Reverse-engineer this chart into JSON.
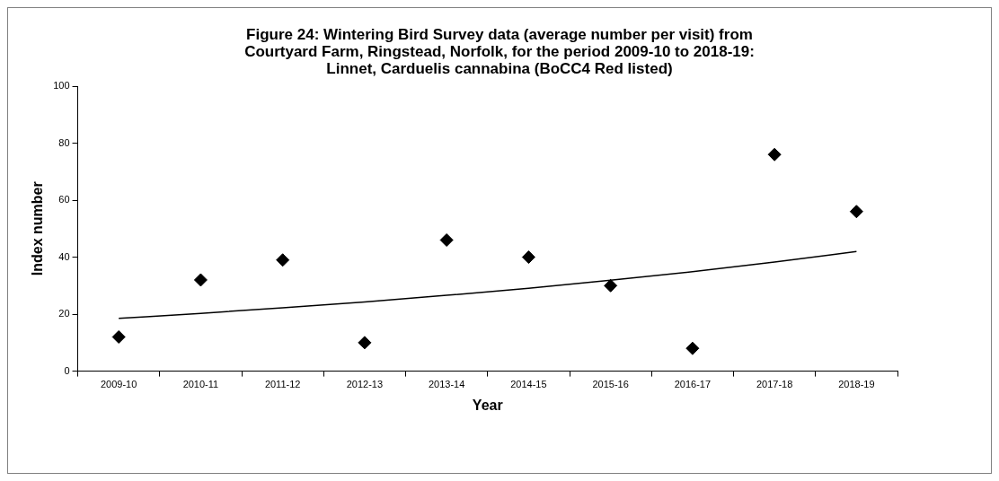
{
  "chart_data": {
    "type": "scatter",
    "title": "Figure 24: Wintering Bird Survey data (average number per visit) from Courtyard Farm, Ringstead, Norfolk, for the period 2009-10 to 2018-19: Linnet, Carduelis cannabina (BoCC4 Red listed)",
    "xlabel": "Year",
    "ylabel": "Index number",
    "categories": [
      "2009-10",
      "2010-11",
      "2011-12",
      "2012-13",
      "2013-14",
      "2014-15",
      "2015-16",
      "2016-17",
      "2017-18",
      "2018-19"
    ],
    "series": [
      {
        "color": "#000000",
        "marker": "diamond",
        "values": [
          12,
          32,
          39,
          10,
          46,
          40,
          30,
          8,
          76,
          56
        ]
      },
      {
        "type": "line",
        "color": "#000000",
        "marker": "none",
        "line_style": "solid",
        "values": [
          18.5,
          20.3,
          22.2,
          24.3,
          26.6,
          29.1,
          31.9,
          34.9,
          38.3,
          42
        ]
      }
    ],
    "ylim": [
      0,
      100
    ],
    "yticks": [
      0,
      20,
      40,
      60,
      80,
      100
    ],
    "grid": false,
    "legend": false
  }
}
